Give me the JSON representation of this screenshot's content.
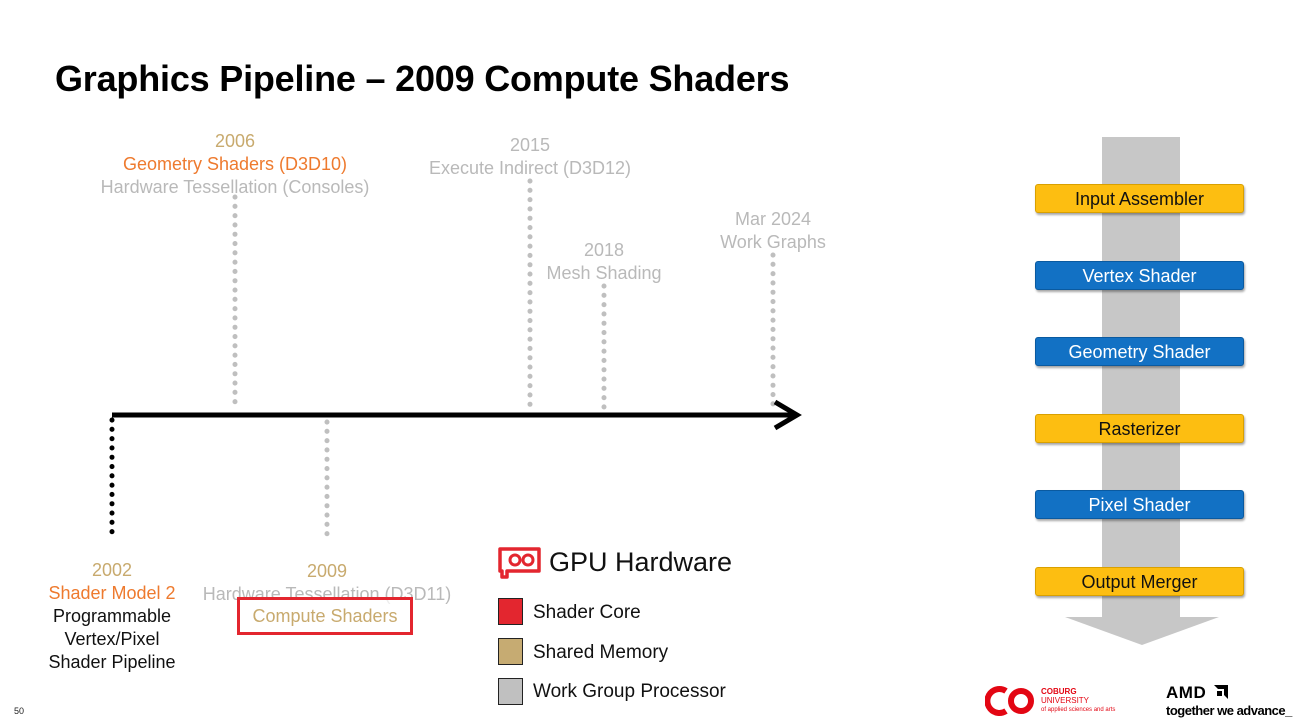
{
  "slide": {
    "title": "Graphics Pipeline – 2009 Compute Shaders",
    "page_number": "50"
  },
  "timeline": {
    "events_above": [
      {
        "year": "2006",
        "line1": "Geometry Shaders (D3D10)",
        "line2": "Hardware Tessellation (Consoles)"
      },
      {
        "year": "2015",
        "line1": "Execute Indirect (D3D12)"
      },
      {
        "year": "2018",
        "line1": "Mesh Shading"
      },
      {
        "year": "Mar 2024",
        "line1": "Work Graphs"
      }
    ],
    "events_below": [
      {
        "year": "2002",
        "line1": "Shader Model 2",
        "line2": "Programmable",
        "line3": "Vertex/Pixel",
        "line4": "Shader Pipeline"
      },
      {
        "year": "2009",
        "line1": "Hardware Tessellation (D3D11)",
        "highlight": "Compute Shaders"
      }
    ]
  },
  "gpu_hardware": {
    "title": "GPU Hardware",
    "icon": "gpu-card-icon",
    "legend": [
      {
        "label": "Shader Core",
        "color": "#e3262f"
      },
      {
        "label": "Shared Memory",
        "color": "#c6ab72"
      },
      {
        "label": "Work Group Processor",
        "color": "#c0c0c0"
      }
    ]
  },
  "pipeline": {
    "stages": [
      {
        "label": "Input Assembler",
        "color": "#fdbe11"
      },
      {
        "label": "Vertex Shader",
        "color": "#1271c4"
      },
      {
        "label": "Geometry Shader",
        "color": "#1271c4"
      },
      {
        "label": "Rasterizer",
        "color": "#fdbe11"
      },
      {
        "label": "Pixel Shader",
        "color": "#1271c4"
      },
      {
        "label": "Output Merger",
        "color": "#fdbe11"
      }
    ]
  },
  "logos": {
    "coburg": {
      "mark": "CO",
      "line1": "COBURG",
      "line2": "UNIVERSITY",
      "line3": "of applied sciences and arts"
    },
    "amd": {
      "name": "AMD",
      "tagline": "together we advance_"
    }
  }
}
